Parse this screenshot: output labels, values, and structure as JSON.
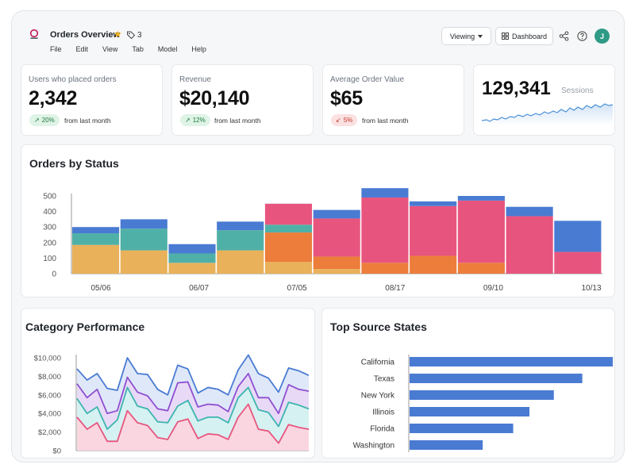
{
  "header": {
    "title": "Orders Overview",
    "tag_count": "3",
    "menu": [
      "File",
      "Edit",
      "View",
      "Tab",
      "Model",
      "Help"
    ],
    "viewing_label": "Viewing",
    "dashboard_label": "Dashboard",
    "avatar_initial": "J"
  },
  "kpis": [
    {
      "label": "Users who placed orders",
      "value": "2,342",
      "change": "20%",
      "direction": "up",
      "note": "from last month"
    },
    {
      "label": "Revenue",
      "value": "$20,140",
      "change": "12%",
      "direction": "up",
      "note": "from last month"
    },
    {
      "label": "Average Order Value",
      "value": "$65",
      "change": "5%",
      "direction": "down",
      "note": "from last month"
    }
  ],
  "sessions": {
    "value": "129,341",
    "label": "Sessions"
  },
  "colors": {
    "yellow": "#e9b15a",
    "teal": "#4fb0a7",
    "blue": "#4a7bd3",
    "orange": "#ec7d3b",
    "pink": "#e7557f",
    "purple": "#8f4fd1",
    "bar_blue": "#4a7bd3"
  },
  "chart_data": [
    {
      "type": "bar",
      "stacked": true,
      "title": "Orders by Status",
      "x_tick_labels": [
        "05/06",
        "06/07",
        "07/05",
        "08/17",
        "09/10",
        "10/13"
      ],
      "ylim": [
        0,
        500
      ],
      "yticks": [
        0,
        100,
        200,
        300,
        400,
        500
      ],
      "categories": [
        "b1",
        "b2",
        "b3",
        "b4",
        "b5",
        "b6",
        "b7",
        "b8",
        "b9",
        "b10",
        "b11"
      ],
      "series": [
        {
          "color": "#e9b15a",
          "values": [
            185,
            150,
            70,
            150,
            75,
            30,
            0,
            0,
            0,
            0,
            0
          ]
        },
        {
          "color": "#ec7d3b",
          "values": [
            0,
            0,
            0,
            0,
            190,
            80,
            70,
            115,
            70,
            0,
            0
          ]
        },
        {
          "color": "#4fb0a7",
          "values": [
            75,
            140,
            60,
            130,
            50,
            0,
            0,
            0,
            0,
            0,
            0
          ]
        },
        {
          "color": "#e7557f",
          "values": [
            0,
            0,
            0,
            0,
            135,
            245,
            420,
            320,
            400,
            370,
            140
          ]
        },
        {
          "color": "#4a7bd3",
          "values": [
            40,
            60,
            60,
            55,
            0,
            55,
            60,
            30,
            30,
            60,
            200
          ]
        }
      ]
    },
    {
      "type": "area",
      "title": "Category Performance",
      "ylim": [
        0,
        10000
      ],
      "yticks": [
        "$0",
        "$2,000",
        "$4,000",
        "$6,000",
        "$8,000",
        "$10,000"
      ],
      "x": [
        0,
        1,
        2,
        3,
        4,
        5,
        6,
        7,
        8,
        9,
        10,
        11,
        12,
        13,
        14,
        15,
        16,
        17,
        18,
        19,
        20,
        21,
        22,
        23
      ],
      "series": [
        {
          "color": "#e7557f",
          "values": [
            3600,
            2300,
            3000,
            1000,
            1000,
            4300,
            3000,
            2700,
            1400,
            1200,
            3100,
            3400,
            1300,
            1800,
            1700,
            1200,
            3600,
            5000,
            2300,
            2100,
            800,
            2800,
            2500,
            2300
          ]
        },
        {
          "color": "#3db5b0",
          "values": [
            5600,
            4000,
            4700,
            2300,
            3300,
            6800,
            4800,
            4500,
            3100,
            3000,
            4800,
            5400,
            3200,
            3600,
            3600,
            3000,
            5700,
            6800,
            4400,
            4100,
            2600,
            5200,
            4900,
            4500
          ]
        },
        {
          "color": "#8f4fd1",
          "values": [
            7200,
            5700,
            6600,
            4000,
            4300,
            7900,
            6300,
            5900,
            4500,
            4300,
            7300,
            7400,
            4700,
            5000,
            4900,
            4200,
            6900,
            8300,
            5700,
            5700,
            4000,
            7100,
            6600,
            6400
          ]
        },
        {
          "color": "#4a7bd3",
          "values": [
            8800,
            7600,
            8300,
            6700,
            6500,
            10000,
            8300,
            8200,
            6600,
            6000,
            9200,
            8800,
            6200,
            6800,
            6600,
            6000,
            8700,
            10300,
            8300,
            7800,
            6300,
            8900,
            8600,
            8100
          ]
        }
      ]
    },
    {
      "type": "bar",
      "orientation": "horizontal",
      "title": "Top Source States",
      "categories": [
        "California",
        "Texas",
        "New York",
        "Illinois",
        "Florida",
        "Washington"
      ],
      "values": [
        100,
        85,
        71,
        59,
        51,
        36
      ],
      "color": "#4a7bd3"
    }
  ]
}
